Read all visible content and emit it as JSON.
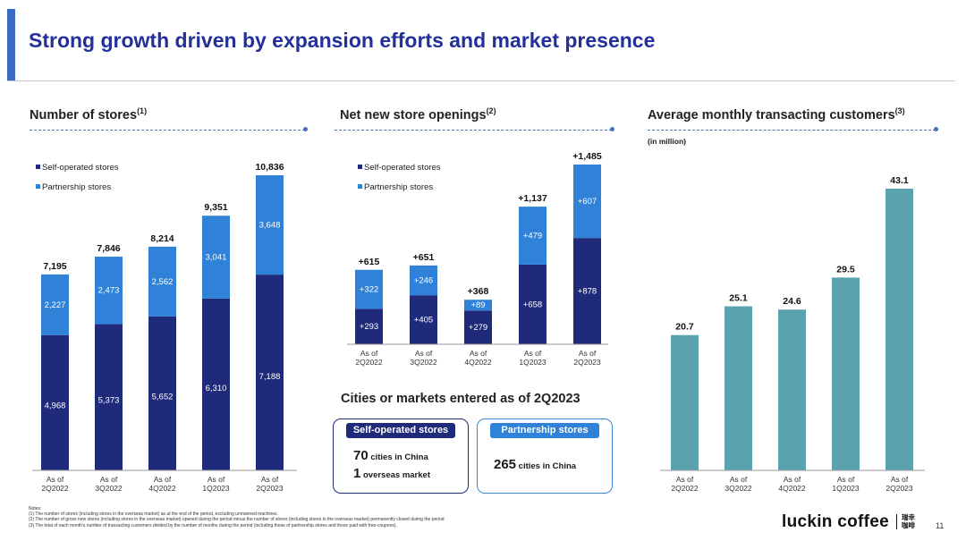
{
  "page_title": "Strong growth driven by expansion efforts and market presence",
  "colors": {
    "self_operated": "#1f2a7a",
    "partnership": "#2f82d8",
    "customers": "#5aa3ae",
    "title": "#23309a"
  },
  "sections": {
    "stores": {
      "title": "Number of stores",
      "ref": "(1)"
    },
    "openings": {
      "title": "Net new store openings",
      "ref": "(2)"
    },
    "customers": {
      "title": "Average monthly transacting customers",
      "ref": "(3)",
      "unit": "(in million)"
    },
    "cities": {
      "title": "Cities or markets entered as of 2Q2023"
    }
  },
  "cities": {
    "self_operated": {
      "label": "Self-operated stores",
      "line1_num": "70",
      "line1_text": "cities in China",
      "line2_num": "1",
      "line2_text": "overseas market"
    },
    "partnership": {
      "label": "Partnership stores",
      "line1_num": "265",
      "line1_text": "cities in China"
    }
  },
  "notes": [
    "Notes:",
    "(1) The number of stores (including stores in the overseas market) as at the end of the period, excluding unmanned machines.",
    "(2) The number of gross new stores (including stores in the overseas market) opened during the period minus the number of stores (including stores in the overseas market) permanently closed during the period",
    "(3) The total of each month's number of transacting customers divided by the number of months during the period (including those of partnership stores and those paid with free-coupons)."
  ],
  "logo": {
    "text": "luckin coffee",
    "cn1": "瑞幸",
    "cn2": "咖啡"
  },
  "page_number": "11",
  "chart_data": [
    {
      "type": "bar",
      "stacked": true,
      "categories": [
        [
          "As of",
          "2Q2022"
        ],
        [
          "As of",
          "3Q2022"
        ],
        [
          "As of",
          "4Q2022"
        ],
        [
          "As of",
          "1Q2023"
        ],
        [
          "As of",
          "2Q2023"
        ]
      ],
      "series": [
        {
          "name": "Self-operated stores",
          "values": [
            4968,
            5373,
            5652,
            6310,
            7188
          ],
          "labels": [
            "4,968",
            "5,373",
            "5,652",
            "6,310",
            "7,188"
          ]
        },
        {
          "name": "Partnership stores",
          "values": [
            2227,
            2473,
            2562,
            3041,
            3648
          ],
          "labels": [
            "2,227",
            "2,473",
            "2,562",
            "3,041",
            "3,648"
          ]
        }
      ],
      "totals": [
        "7,195",
        "7,846",
        "8,214",
        "9,351",
        "10,836"
      ],
      "legend_position": "top-left"
    },
    {
      "type": "bar",
      "stacked": true,
      "categories": [
        [
          "As of",
          "2Q2022"
        ],
        [
          "As of",
          "3Q2022"
        ],
        [
          "As of",
          "4Q2022"
        ],
        [
          "As of",
          "1Q2023"
        ],
        [
          "As of",
          "2Q2023"
        ]
      ],
      "series": [
        {
          "name": "Self-operated stores",
          "values": [
            293,
            405,
            279,
            658,
            878
          ],
          "labels": [
            "+293",
            "+405",
            "+279",
            "+658",
            "+878"
          ]
        },
        {
          "name": "Partnership stores",
          "values": [
            322,
            246,
            89,
            479,
            607
          ],
          "labels": [
            "+322",
            "+246",
            "+89",
            "+479",
            "+607"
          ]
        }
      ],
      "totals": [
        "+615",
        "+651",
        "+368",
        "+1,137",
        "+1,485"
      ],
      "legend_position": "top-left"
    },
    {
      "type": "bar",
      "categories": [
        [
          "As of",
          "2Q2022"
        ],
        [
          "As of",
          "3Q2022"
        ],
        [
          "As of",
          "4Q2022"
        ],
        [
          "As of",
          "1Q2023"
        ],
        [
          "As of",
          "2Q2023"
        ]
      ],
      "series": [
        {
          "values": [
            20.7,
            25.1,
            24.6,
            29.5,
            43.1
          ],
          "labels": [
            "20.7",
            "25.1",
            "24.6",
            "29.5",
            "43.1"
          ]
        }
      ],
      "ylabel": "(in million)"
    }
  ]
}
